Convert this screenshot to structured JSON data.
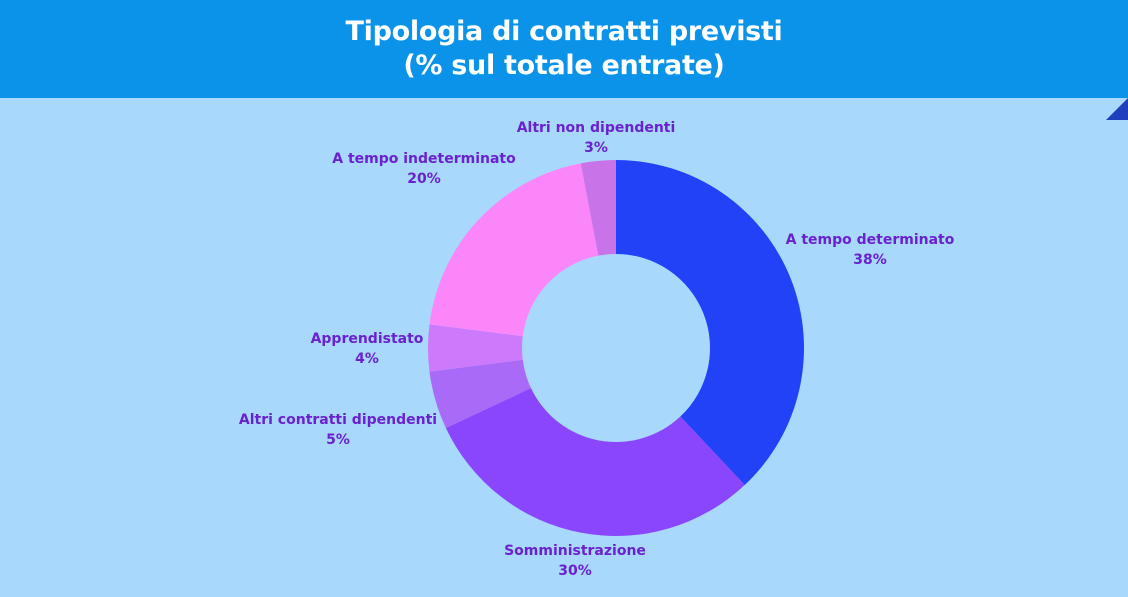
{
  "header": {
    "title_line1": "Tipologia di contratti previsti",
    "title_line2": "(% sul totale entrate)"
  },
  "colors": {
    "background": "#a8d8fb",
    "header": "#0a93e8",
    "label": "#6a22d0"
  },
  "chart_data": {
    "type": "pie",
    "donut": true,
    "title": "Tipologia di contratti previsti",
    "subtitle": "(% sul totale entrate)",
    "slices": [
      {
        "name": "A tempo determinato",
        "value": 38,
        "label": "38%",
        "color": "#2242f7"
      },
      {
        "name": "Somministrazione",
        "value": 30,
        "label": "30%",
        "color": "#8a46fd"
      },
      {
        "name": "Altri contratti dipendenti",
        "value": 5,
        "label": "5%",
        "color": "#a96af8"
      },
      {
        "name": "Apprendistato",
        "value": 4,
        "label": "4%",
        "color": "#cd79fb"
      },
      {
        "name": "A tempo indeterminato",
        "value": 20,
        "label": "20%",
        "color": "#fb86fa"
      },
      {
        "name": "Altri non dipendenti",
        "value": 3,
        "label": "3%",
        "color": "#c873e8"
      }
    ]
  }
}
